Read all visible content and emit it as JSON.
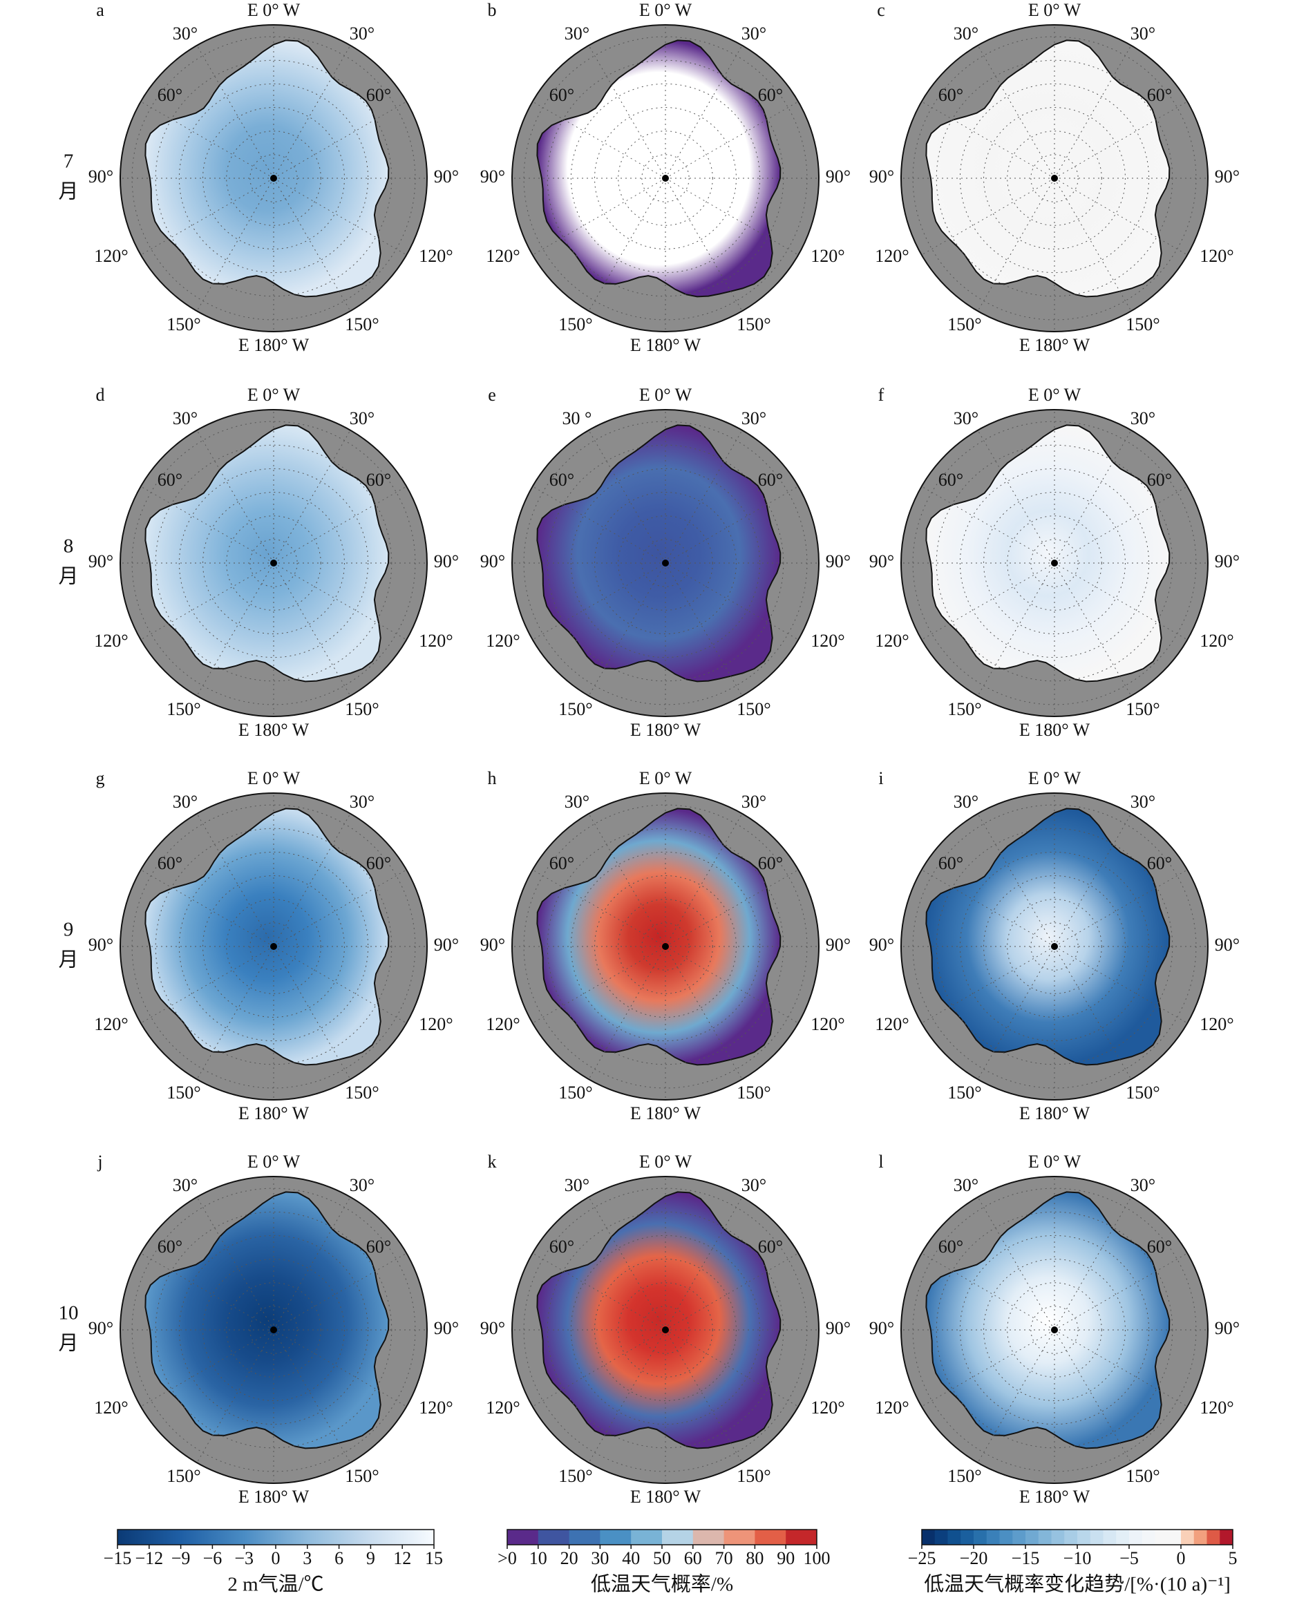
{
  "panels": [
    {
      "label": "a",
      "lon_labels": [
        "E 0° W",
        "30°",
        "30°",
        "60°",
        "60°",
        "90°",
        "90°",
        "120°",
        "120°",
        "150°",
        "150°",
        "E 180° W"
      ],
      "ocean_colors": [
        "#6fa6d1",
        "#7aaed6",
        "#a9cbe6",
        "#dbe8f4"
      ]
    },
    {
      "label": "b",
      "lon_labels": [
        "E 0° W",
        "30°",
        "30°",
        "60°",
        "60°",
        "90°",
        "90°",
        "120°",
        "120°",
        "150°",
        "150°",
        "E 180° W"
      ],
      "ocean_colors": [
        "#ffffff",
        "#ffffff",
        "#ffffff",
        "#ffffff",
        "#5a2a8a"
      ]
    },
    {
      "label": "c",
      "lon_labels": [
        "E 0° W",
        "30°",
        "30°",
        "60°",
        "60°",
        "90°",
        "90°",
        "120°",
        "120°",
        "150°",
        "150°",
        "E 180° W"
      ],
      "ocean_colors": [
        "#f7f7f7",
        "#f5f5f5",
        "#f7f7f7"
      ]
    },
    {
      "label": "d",
      "lon_labels": [
        "E 0° W",
        "30°",
        "30°",
        "60°",
        "60°",
        "90°",
        "90°",
        "120°",
        "120°",
        "150°",
        "150°",
        "E 180° W"
      ],
      "ocean_colors": [
        "#6aa3d0",
        "#7fb3da",
        "#a9cbe6",
        "#d6e6f3"
      ]
    },
    {
      "label": "e",
      "lon_labels": [
        "E 0° W",
        "30 °",
        "30°",
        "60°",
        "60°",
        "90°",
        "90°",
        "120°",
        "120°",
        "150°",
        "150°",
        "E 180° W"
      ],
      "ocean_colors": [
        "#3d55a0",
        "#3f5ca6",
        "#4a6fb0",
        "#5a2a8a"
      ]
    },
    {
      "label": "f",
      "lon_labels": [
        "E 0° W",
        "30°",
        "30°",
        "60°",
        "60°",
        "90°",
        "90°",
        "120°",
        "120°",
        "150°",
        "150°",
        "E 180° W"
      ],
      "ocean_colors": [
        "#f3f6fa",
        "#dce9f5",
        "#eef3f9",
        "#f7f7f7"
      ]
    },
    {
      "label": "g",
      "lon_labels": [
        "E 0° W",
        "30°",
        "30°",
        "60°",
        "60°",
        "90°",
        "90°",
        "120°",
        "120°",
        "150°",
        "150°",
        "E 180° W"
      ],
      "ocean_colors": [
        "#2c6bab",
        "#3a80bf",
        "#6ca6d2",
        "#c6dcef"
      ]
    },
    {
      "label": "h",
      "lon_labels": [
        "E 0° W",
        "30°",
        "30°",
        "60°",
        "60°",
        "90°",
        "90°",
        "120°",
        "120°",
        "150°",
        "150°",
        "E 180° W"
      ],
      "ocean_colors": [
        "#c42525",
        "#cf3a2e",
        "#e8795c",
        "#6fa9cf",
        "#5a2a8a"
      ]
    },
    {
      "label": "i",
      "lon_labels": [
        "E 0° W",
        "30°",
        "30°",
        "60°",
        "60°",
        "90°",
        "90°",
        "120°",
        "120°",
        "150°",
        "150°",
        "E 180° W"
      ],
      "ocean_colors": [
        "#eef3f9",
        "#b7d3ea",
        "#3f7db8",
        "#1f5a9c"
      ]
    },
    {
      "label": "j",
      "lon_labels": [
        "E 0° W",
        "30°",
        "30°",
        "60°",
        "60°",
        "90°",
        "90°",
        "120°",
        "120°",
        "150°",
        "150°",
        "E 180° W"
      ],
      "ocean_colors": [
        "#0c3d78",
        "#174b8a",
        "#2a64a4",
        "#5a97c9"
      ]
    },
    {
      "label": "k",
      "lon_labels": [
        "E 0° W",
        "30°",
        "30°",
        "60°",
        "60°",
        "90°",
        "90°",
        "120°",
        "120°",
        "150°",
        "150°",
        "E 180° W"
      ],
      "ocean_colors": [
        "#c82a27",
        "#d4342d",
        "#e46548",
        "#4a6fb0",
        "#5a2a8a"
      ]
    },
    {
      "label": "l",
      "lon_labels": [
        "E 0° W",
        "30°",
        "30°",
        "60°",
        "60°",
        "90°",
        "90°",
        "120°",
        "120°",
        "150°",
        "150°",
        "E 180° W"
      ],
      "ocean_colors": [
        "#ffffff",
        "#e3eef7",
        "#9fc5e2",
        "#3a77b3"
      ]
    }
  ],
  "rows": [
    {
      "month": "7",
      "suffix": "月"
    },
    {
      "month": "8",
      "suffix": "月"
    },
    {
      "month": "9",
      "suffix": "月"
    },
    {
      "month": "10",
      "suffix": "月"
    }
  ],
  "colorbars": [
    {
      "title": "2 m气温/℃",
      "lim": [
        -15,
        15
      ],
      "continuous": true,
      "colors": [
        "#0b3a75",
        "#1f5fa5",
        "#4a8cc4",
        "#8fbbdd",
        "#c9ddef",
        "#f7fbff"
      ],
      "ticks": [
        {
          "value": -15,
          "label": "−15"
        },
        {
          "value": -12,
          "label": "−12"
        },
        {
          "value": -9,
          "label": "−9"
        },
        {
          "value": -6,
          "label": "−6"
        },
        {
          "value": -3,
          "label": "−3"
        },
        0,
        3,
        6,
        9,
        12,
        15
      ]
    },
    {
      "title": "低温天气概率/%",
      "lim": [
        0,
        100
      ],
      "continuous": false,
      "colors": [
        "#5a2a8a",
        "#3f55a0",
        "#3d72b2",
        "#4a90c4",
        "#79b3d6",
        "#b5d3e6",
        "#dcb7ad",
        "#ee9479",
        "#e35f47",
        "#c4272a"
      ],
      "ticks": [
        {
          "value": 0,
          "label": ">0"
        },
        10,
        20,
        30,
        40,
        50,
        60,
        70,
        80,
        90,
        100
      ]
    },
    {
      "title": "低温天气概率变化趋势/[%·(10 a)⁻¹]",
      "lim": [
        -25,
        5
      ],
      "continuous": false,
      "colors": [
        "#08306b",
        "#0b3f7e",
        "#10508f",
        "#1a5f9e",
        "#2870ab",
        "#3a80b9",
        "#4b8fc3",
        "#5d9ccb",
        "#70a9d2",
        "#83b6d9",
        "#96c2e0",
        "#a8cde6",
        "#b9d7eb",
        "#c9e0f0",
        "#d7e8f4",
        "#e3eff7",
        "#edf3f9",
        "#f3f6f9",
        "#f7f7f7",
        "#f7f7f7",
        "#f9d0b8",
        "#f2a07e",
        "#de5a46",
        "#b2182b"
      ],
      "ticks": [
        {
          "value": -25,
          "label": "−25"
        },
        {
          "value": -20,
          "label": "−20"
        },
        {
          "value": -15,
          "label": "−15"
        },
        {
          "value": -10,
          "label": "−10"
        },
        {
          "value": -5,
          "label": "−5"
        },
        0,
        5
      ]
    }
  ]
}
